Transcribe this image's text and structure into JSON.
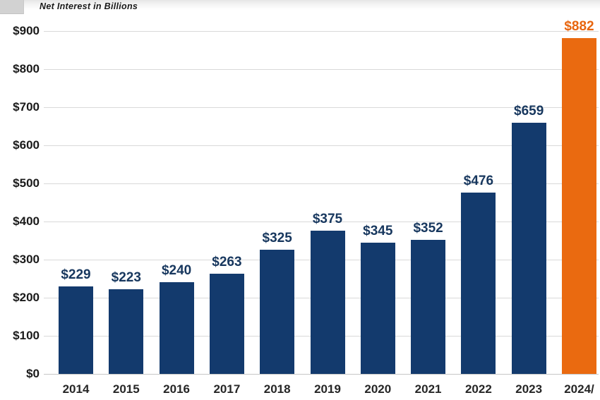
{
  "title": "Net Interest in Billions",
  "colors": {
    "bar": "#133a6d",
    "highlight_bar": "#ea6a10",
    "value_label": "#17375e",
    "highlight_value_label": "#e8650e",
    "gridline": "#d9d9d9",
    "axis_line": "#c6c6c6",
    "y_axis_text": "#1a1a1a",
    "x_axis_text": "#262626"
  },
  "chart_data": {
    "type": "bar",
    "title": "Net Interest in Billions",
    "categories": [
      "2014",
      "2015",
      "2016",
      "2017",
      "2018",
      "2019",
      "2020",
      "2021",
      "2022",
      "2023",
      "2024/"
    ],
    "values": [
      229,
      223,
      240,
      263,
      325,
      375,
      345,
      352,
      476,
      659,
      882
    ],
    "value_labels": [
      "$229",
      "$223",
      "$240",
      "$263",
      "$325",
      "$375",
      "$345",
      "$352",
      "$476",
      "$659",
      "$882"
    ],
    "highlight_index": 10,
    "xlabel": "",
    "ylabel": "",
    "ylim": [
      0,
      900
    ],
    "ytick_step": 100,
    "ytick_labels": [
      "$0",
      "$100",
      "$200",
      "$300",
      "$400",
      "$500",
      "$600",
      "$700",
      "$800",
      "$900"
    ],
    "grid": true,
    "legend": false
  }
}
